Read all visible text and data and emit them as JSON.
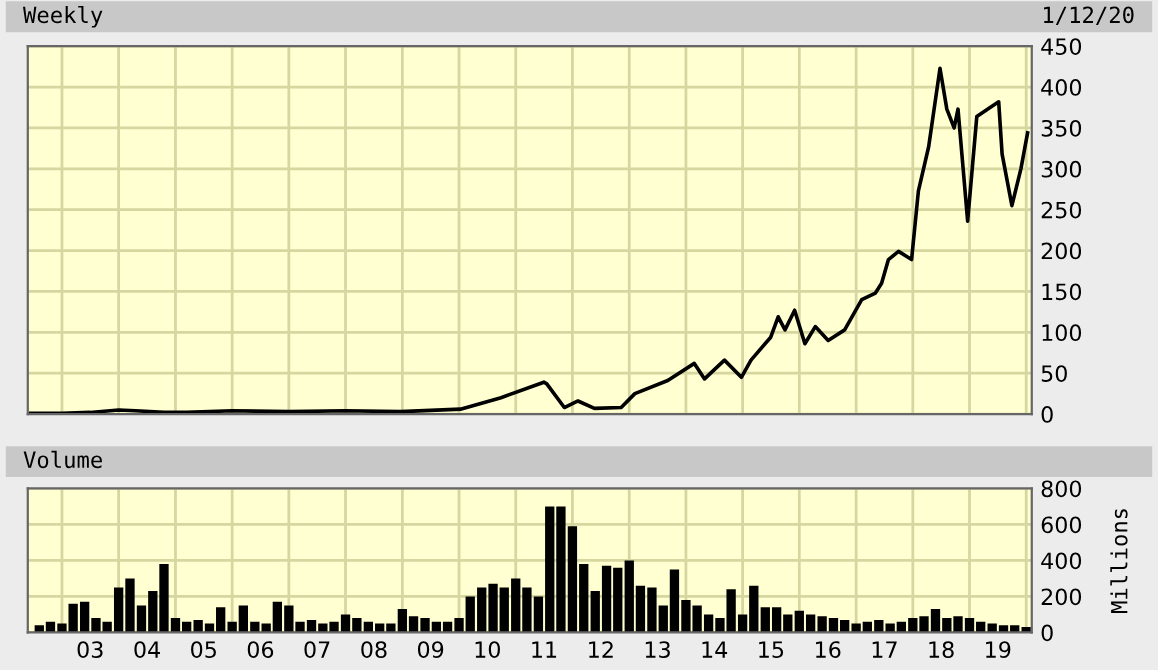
{
  "chart_data": [
    {
      "type": "line",
      "title": "Weekly",
      "annotations": [
        "1/12/20"
      ],
      "tick_labels": "y",
      "grid": true,
      "series": [
        {
          "color": "#000000",
          "x": [
            "2002-06-14",
            "2003-01-01",
            "2003-07-01",
            "2004-01-01",
            "2004-04-20",
            "2004-10-19",
            "2005-03-14",
            "2006-01-01",
            "2007-01-01",
            "2008-01-01",
            "2008-12-20",
            "2010-01-10",
            "2010-09-28",
            "2011-07-01",
            "2011-07-20",
            "2011-11-10",
            "2012-02-06",
            "2012-05-22",
            "2012-11-10",
            "2013-02-06",
            "2013-09-06",
            "2014-02-24",
            "2014-05-01",
            "2014-09-06",
            "2014-12-24",
            "2015-02-24",
            "2015-07-01",
            "2015-08-18",
            "2015-10-01",
            "2015-12-02",
            "2016-02-06",
            "2016-04-13",
            "2016-07-05",
            "2016-10-19",
            "2017-02-06",
            "2017-05-05",
            "2017-06-14",
            "2017-07-28",
            "2017-10-01",
            "2017-12-24",
            "2018-02-06",
            "2018-04-13",
            "2018-06-25",
            "2018-08-08",
            "2018-09-24",
            "2018-10-19",
            "2018-12-20",
            "2019-02-17",
            "2019-04-27",
            "2019-07-08",
            "2019-07-30",
            "2019-10-01",
            "2019-11-28",
            "2020-01-10"
          ],
          "values": [
            1,
            1,
            2,
            5,
            4,
            2,
            2,
            4,
            3,
            4,
            3,
            6,
            20,
            39,
            37,
            8,
            16,
            7,
            8,
            25,
            41,
            62,
            43,
            66,
            45,
            66,
            94,
            119,
            103,
            127,
            86,
            107,
            90,
            103,
            140,
            148,
            160,
            189,
            199,
            189,
            273,
            327,
            423,
            373,
            350,
            373,
            236,
            364,
            373,
            382,
            318,
            255,
            300,
            344
          ]
        }
      ],
      "xlim": [
        "2002-05-26",
        "2020-02-06"
      ],
      "ylim": [
        0,
        450
      ],
      "yticks": [
        0,
        50,
        100,
        150,
        200,
        250,
        300,
        350,
        400,
        450
      ],
      "xticks": [
        {
          "value": "2003-01-01",
          "label": null
        },
        {
          "value": "2004-01-01",
          "label": null
        },
        {
          "value": "2005-01-01",
          "label": null
        },
        {
          "value": "2006-01-01",
          "label": null
        },
        {
          "value": "2007-01-01",
          "label": null
        },
        {
          "value": "2008-01-01",
          "label": null
        },
        {
          "value": "2009-01-01",
          "label": null
        },
        {
          "value": "2010-01-01",
          "label": null
        },
        {
          "value": "2011-01-01",
          "label": null
        },
        {
          "value": "2012-01-01",
          "label": null
        },
        {
          "value": "2013-01-01",
          "label": null
        },
        {
          "value": "2014-01-01",
          "label": null
        },
        {
          "value": "2015-01-01",
          "label": null
        },
        {
          "value": "2016-01-01",
          "label": null
        },
        {
          "value": "2017-01-01",
          "label": null
        },
        {
          "value": "2018-01-01",
          "label": null
        },
        {
          "value": "2019-01-01",
          "label": null
        },
        {
          "value": "2020-01-01",
          "label": null
        }
      ]
    },
    {
      "type": "bar",
      "title": "Volume",
      "ylabel": "Millions",
      "grid": true,
      "series": [
        {
          "color": "#000000",
          "x": [
            "2002-08-08",
            "2002-10-19",
            "2003-01-01",
            "2003-03-14",
            "2003-05-27",
            "2003-08-08",
            "2003-10-19",
            "2004-01-01",
            "2004-03-14",
            "2004-05-27",
            "2004-08-08",
            "2004-10-19",
            "2005-01-01",
            "2005-03-14",
            "2005-05-27",
            "2005-08-08",
            "2005-10-19",
            "2006-01-01",
            "2006-03-14",
            "2006-05-27",
            "2006-08-08",
            "2006-10-19",
            "2007-01-01",
            "2007-03-14",
            "2007-05-27",
            "2007-08-08",
            "2007-10-19",
            "2008-01-01",
            "2008-03-14",
            "2008-05-27",
            "2008-08-08",
            "2008-10-19",
            "2009-01-01",
            "2009-03-14",
            "2009-05-27",
            "2009-08-08",
            "2009-10-19",
            "2010-01-01",
            "2010-03-14",
            "2010-05-27",
            "2010-08-08",
            "2010-10-19",
            "2011-01-01",
            "2011-03-14",
            "2011-05-27",
            "2011-08-08",
            "2011-10-19",
            "2012-01-01",
            "2012-03-14",
            "2012-05-27",
            "2012-08-08",
            "2012-10-19",
            "2013-01-01",
            "2013-03-14",
            "2013-05-27",
            "2013-08-08",
            "2013-10-19",
            "2014-01-01",
            "2014-03-14",
            "2014-05-27",
            "2014-08-08",
            "2014-10-19",
            "2015-01-01",
            "2015-03-14",
            "2015-05-27",
            "2015-08-08",
            "2015-10-19",
            "2016-01-01",
            "2016-03-14",
            "2016-05-27",
            "2016-08-08",
            "2016-10-19",
            "2017-01-01",
            "2017-03-14",
            "2017-05-27",
            "2017-08-08",
            "2017-10-19",
            "2018-01-01",
            "2018-03-14",
            "2018-05-27",
            "2018-08-08",
            "2018-10-19",
            "2019-01-01",
            "2019-03-14",
            "2019-05-27",
            "2019-08-08",
            "2019-10-19",
            "2020-01-01"
          ],
          "values": [
            40,
            60,
            50,
            160,
            170,
            80,
            60,
            250,
            300,
            150,
            230,
            380,
            80,
            60,
            70,
            50,
            140,
            60,
            150,
            60,
            50,
            170,
            150,
            60,
            70,
            50,
            60,
            100,
            80,
            60,
            50,
            50,
            130,
            90,
            80,
            60,
            60,
            80,
            200,
            250,
            270,
            250,
            300,
            250,
            200,
            700,
            700,
            590,
            380,
            230,
            370,
            360,
            400,
            260,
            250,
            150,
            350,
            180,
            150,
            100,
            80,
            240,
            100,
            260,
            140,
            140,
            100,
            120,
            100,
            90,
            80,
            70,
            50,
            60,
            70,
            50,
            60,
            80,
            90,
            130,
            80,
            90,
            80,
            60,
            50,
            40,
            40,
            30
          ]
        }
      ],
      "xlim": [
        "2002-05-26",
        "2020-02-06"
      ],
      "ylim": [
        0,
        800
      ],
      "yticks": [
        0,
        200,
        400,
        600,
        800
      ],
      "xticks": [
        {
          "value": "2003-01-01",
          "label": null
        },
        {
          "value": "2003-07-02",
          "label": "03"
        },
        {
          "value": "2004-01-01",
          "label": null
        },
        {
          "value": "2004-07-02",
          "label": "04"
        },
        {
          "value": "2005-01-01",
          "label": null
        },
        {
          "value": "2005-07-02",
          "label": "05"
        },
        {
          "value": "2006-01-01",
          "label": null
        },
        {
          "value": "2006-07-02",
          "label": "06"
        },
        {
          "value": "2007-01-01",
          "label": null
        },
        {
          "value": "2007-07-02",
          "label": "07"
        },
        {
          "value": "2008-01-01",
          "label": null
        },
        {
          "value": "2008-07-02",
          "label": "08"
        },
        {
          "value": "2009-01-01",
          "label": null
        },
        {
          "value": "2009-07-02",
          "label": "09"
        },
        {
          "value": "2010-01-01",
          "label": null
        },
        {
          "value": "2010-07-02",
          "label": "10"
        },
        {
          "value": "2011-01-01",
          "label": null
        },
        {
          "value": "2011-07-02",
          "label": "11"
        },
        {
          "value": "2012-01-01",
          "label": null
        },
        {
          "value": "2012-07-02",
          "label": "12"
        },
        {
          "value": "2013-01-01",
          "label": null
        },
        {
          "value": "2013-07-02",
          "label": "13"
        },
        {
          "value": "2014-01-01",
          "label": null
        },
        {
          "value": "2014-07-02",
          "label": "14"
        },
        {
          "value": "2015-01-01",
          "label": null
        },
        {
          "value": "2015-07-02",
          "label": "15"
        },
        {
          "value": "2016-01-01",
          "label": null
        },
        {
          "value": "2016-07-02",
          "label": "16"
        },
        {
          "value": "2017-01-01",
          "label": null
        },
        {
          "value": "2017-07-02",
          "label": "17"
        },
        {
          "value": "2018-01-01",
          "label": null
        },
        {
          "value": "2018-07-02",
          "label": "18"
        },
        {
          "value": "2019-01-01",
          "label": null
        },
        {
          "value": "2019-07-02",
          "label": "19"
        },
        {
          "value": "2020-01-01",
          "label": null
        }
      ]
    }
  ]
}
